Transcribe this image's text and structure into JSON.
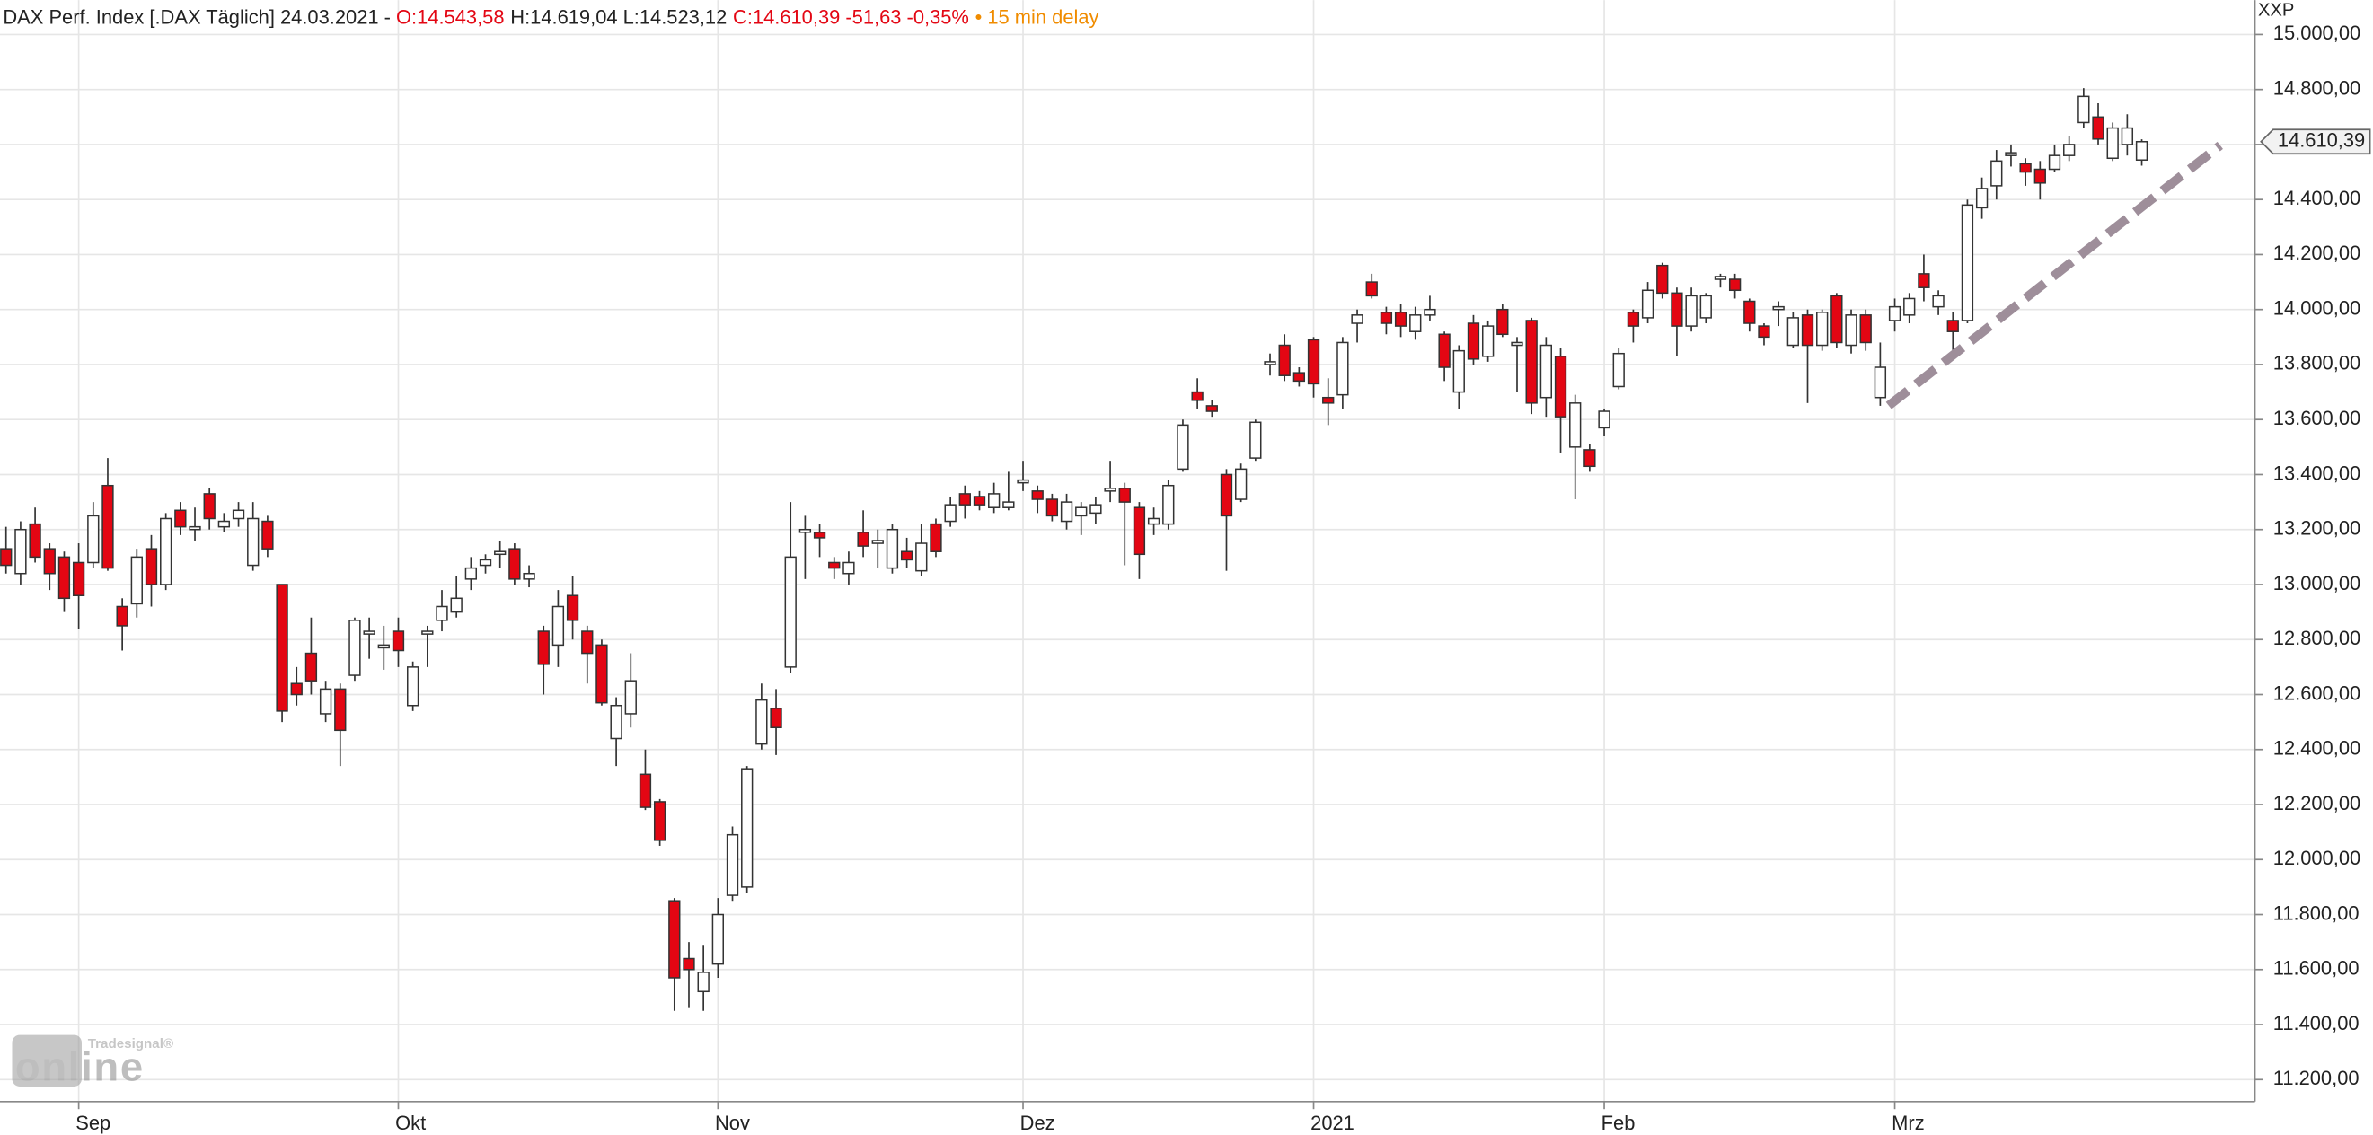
{
  "chart_data": {
    "type": "candlestick",
    "header": {
      "name": "DAX Perf. Index [.DAX Täglich] 24.03.2021 - ",
      "open": "O:14.543,58",
      "high_low": "H:14.619,04 L:14.523,12",
      "close": "C:14.610,39 -51,63 -0,35%",
      "delay": "• 15 min delay"
    },
    "axis_label": "XXP",
    "last_price_label": "14.610,39",
    "watermark": {
      "brand": "Tradesignal®",
      "product": "online"
    },
    "up_color": "#ffffff",
    "down_color": "#e30613",
    "categories": [
      null,
      null,
      null,
      null,
      null,
      "Sep",
      null,
      null,
      null,
      null,
      null,
      null,
      null,
      null,
      null,
      null,
      null,
      null,
      null,
      null,
      null,
      null,
      null,
      null,
      null,
      null,
      null,
      "Okt",
      null,
      null,
      null,
      null,
      null,
      null,
      null,
      null,
      null,
      null,
      null,
      null,
      null,
      null,
      null,
      null,
      null,
      null,
      null,
      null,
      null,
      "Nov",
      null,
      null,
      null,
      null,
      null,
      null,
      null,
      null,
      null,
      null,
      null,
      null,
      null,
      null,
      null,
      null,
      null,
      null,
      null,
      null,
      "Dez",
      null,
      null,
      null,
      null,
      null,
      null,
      null,
      null,
      null,
      null,
      null,
      null,
      null,
      null,
      null,
      null,
      null,
      null,
      null,
      "2021",
      null,
      null,
      null,
      null,
      null,
      null,
      null,
      null,
      null,
      null,
      null,
      null,
      null,
      null,
      null,
      null,
      null,
      null,
      null,
      "Feb",
      null,
      null,
      null,
      null,
      null,
      null,
      null,
      null,
      null,
      null,
      null,
      null,
      null,
      null,
      null,
      null,
      null,
      null,
      null,
      "Mrz",
      null,
      null,
      null,
      null,
      null,
      null,
      null,
      null,
      null,
      null,
      null,
      null,
      null,
      null,
      null,
      null,
      null
    ],
    "open": [
      13130,
      13040,
      13220,
      13130,
      13100,
      13080,
      13080,
      13360,
      12920,
      12930,
      13130,
      13000,
      13270,
      13200,
      13330,
      13210,
      13240,
      13070,
      13230,
      13000,
      12640,
      12750,
      12530,
      12620,
      12670,
      12820,
      12770,
      12830,
      12560,
      12820,
      12870,
      12900,
      13020,
      13070,
      13110,
      13130,
      13020,
      12830,
      12780,
      12960,
      12830,
      12780,
      12440,
      12530,
      12310,
      12210,
      11850,
      11640,
      11520,
      11620,
      11870,
      11900,
      12420,
      12550,
      12700,
      13190,
      13190,
      13080,
      13040,
      13190,
      13150,
      13060,
      13120,
      13050,
      13220,
      13230,
      13330,
      13320,
      13280,
      13280,
      13370,
      13340,
      13310,
      13230,
      13250,
      13260,
      13340,
      13350,
      13280,
      13220,
      13220,
      13420,
      13700,
      13650,
      13400,
      13310,
      13460,
      13800,
      13870,
      13770,
      13890,
      13680,
      13690,
      13950,
      14100,
      13990,
      13990,
      13920,
      13980,
      13910,
      13700,
      13950,
      13830,
      14000,
      13870,
      13960,
      13680,
      13830,
      13500,
      13490,
      13570,
      13720,
      13990,
      13970,
      14160,
      14060,
      13940,
      13970,
      14110,
      14110,
      14030,
      13940,
      14000,
      13870,
      13980,
      13870,
      14050,
      13870,
      13980,
      13680,
      13960,
      13980,
      14130,
      14010,
      13960,
      13960,
      14370,
      14450,
      14560,
      14530,
      14510,
      14510,
      14560,
      14680,
      14700,
      14550,
      14600,
      14543.58
    ],
    "high": [
      13210,
      13230,
      13280,
      13150,
      13120,
      13150,
      13300,
      13460,
      12950,
      13130,
      13180,
      13260,
      13300,
      13280,
      13350,
      13260,
      13300,
      13300,
      13250,
      13000,
      12700,
      12880,
      12650,
      12640,
      12880,
      12880,
      12850,
      12880,
      12720,
      12850,
      12980,
      13030,
      13100,
      13110,
      13160,
      13150,
      13070,
      12850,
      12980,
      13030,
      12850,
      12800,
      12590,
      12750,
      12400,
      12220,
      11860,
      11700,
      11690,
      11860,
      12120,
      12340,
      12640,
      12620,
      13300,
      13250,
      13220,
      13100,
      13120,
      13270,
      13200,
      13220,
      13170,
      13220,
      13240,
      13320,
      13360,
      13340,
      13370,
      13410,
      13450,
      13360,
      13330,
      13330,
      13300,
      13320,
      13450,
      13370,
      13300,
      13280,
      13380,
      13600,
      13750,
      13670,
      13420,
      13440,
      13600,
      13840,
      13910,
      13790,
      13900,
      13750,
      13900,
      14000,
      14130,
      14010,
      14020,
      14010,
      14050,
      13920,
      13870,
      13980,
      13960,
      14020,
      13900,
      13970,
      13900,
      13860,
      13690,
      13510,
      13640,
      13860,
      14000,
      14100,
      14170,
      14080,
      14080,
      14060,
      14130,
      14130,
      14040,
      13950,
      14030,
      13990,
      14000,
      14000,
      14060,
      14000,
      14000,
      13880,
      14040,
      14060,
      14200,
      14070,
      13990,
      14400,
      14480,
      14580,
      14600,
      14550,
      14540,
      14600,
      14630,
      14805,
      14750,
      14680,
      14710,
      14619.04
    ],
    "low": [
      13040,
      13000,
      13080,
      12980,
      12900,
      12840,
      13060,
      13050,
      12760,
      12880,
      12920,
      12980,
      13180,
      13160,
      13200,
      13190,
      13210,
      13050,
      13100,
      12500,
      12560,
      12600,
      12500,
      12340,
      12650,
      12730,
      12690,
      12700,
      12540,
      12700,
      12830,
      12880,
      12980,
      13040,
      13060,
      13000,
      12990,
      12600,
      12700,
      12800,
      12640,
      12560,
      12340,
      12480,
      12180,
      12050,
      11450,
      11460,
      11450,
      11570,
      11850,
      11880,
      12400,
      12380,
      12680,
      13020,
      13100,
      13020,
      13000,
      13100,
      13060,
      13040,
      13060,
      13030,
      13100,
      13210,
      13240,
      13270,
      13260,
      13270,
      13340,
      13260,
      13230,
      13200,
      13180,
      13220,
      13300,
      13070,
      13020,
      13180,
      13200,
      13410,
      13640,
      13610,
      13050,
      13300,
      13450,
      13760,
      13740,
      13720,
      13680,
      13580,
      13640,
      13880,
      14040,
      13910,
      13900,
      13890,
      13960,
      13740,
      13640,
      13800,
      13810,
      13900,
      13700,
      13620,
      13610,
      13480,
      13310,
      13410,
      13540,
      13710,
      13880,
      13950,
      14040,
      13830,
      13920,
      13950,
      14080,
      14040,
      13920,
      13870,
      13940,
      13860,
      13660,
      13850,
      13860,
      13840,
      13850,
      13650,
      13920,
      13950,
      14030,
      13980,
      13830,
      13950,
      14330,
      14400,
      14520,
      14450,
      14400,
      14500,
      14540,
      14660,
      14600,
      14540,
      14560,
      14523.12
    ],
    "close": [
      13070,
      13200,
      13100,
      13040,
      12950,
      12960,
      13250,
      13060,
      12850,
      13100,
      13000,
      13240,
      13210,
      13210,
      13240,
      13230,
      13270,
      13240,
      13130,
      12540,
      12600,
      12650,
      12620,
      12470,
      12870,
      12830,
      12780,
      12760,
      12700,
      12830,
      12920,
      12950,
      13060,
      13090,
      13120,
      13020,
      13040,
      12710,
      12920,
      12870,
      12750,
      12570,
      12560,
      12650,
      12190,
      12070,
      11570,
      11600,
      11590,
      11800,
      12090,
      12330,
      12580,
      12480,
      13100,
      13200,
      13170,
      13060,
      13080,
      13140,
      13160,
      13200,
      13090,
      13150,
      13120,
      13290,
      13290,
      13290,
      13330,
      13300,
      13380,
      13310,
      13250,
      13300,
      13280,
      13290,
      13350,
      13300,
      13110,
      13240,
      13360,
      13580,
      13670,
      13630,
      13250,
      13420,
      13590,
      13810,
      13760,
      13740,
      13730,
      13660,
      13880,
      13980,
      14050,
      13950,
      13940,
      13980,
      14000,
      13790,
      13850,
      13820,
      13940,
      13910,
      13880,
      13660,
      13870,
      13610,
      13660,
      13430,
      13630,
      13840,
      13940,
      14070,
      14060,
      13940,
      14050,
      14050,
      14120,
      14070,
      13950,
      13900,
      14010,
      13970,
      13870,
      13990,
      13880,
      13980,
      13880,
      13790,
      14010,
      14040,
      14080,
      14050,
      13920,
      14380,
      14440,
      14540,
      14570,
      14500,
      14460,
      14560,
      14600,
      14775,
      14620,
      14660,
      14660,
      14610.39
    ],
    "ylim": [
      11120,
      15125
    ],
    "yticks": [
      {
        "value": 11200,
        "label": "11.200,00"
      },
      {
        "value": 11400,
        "label": "11.400,00"
      },
      {
        "value": 11600,
        "label": "11.600,00"
      },
      {
        "value": 11800,
        "label": "11.800,00"
      },
      {
        "value": 12000,
        "label": "12.000,00"
      },
      {
        "value": 12200,
        "label": "12.200,00"
      },
      {
        "value": 12400,
        "label": "12.400,00"
      },
      {
        "value": 12600,
        "label": "12.600,00"
      },
      {
        "value": 12800,
        "label": "12.800,00"
      },
      {
        "value": 13000,
        "label": "13.000,00"
      },
      {
        "value": 13200,
        "label": "13.200,00"
      },
      {
        "value": 13400,
        "label": "13.400,00"
      },
      {
        "value": 13600,
        "label": "13.600,00"
      },
      {
        "value": 13800,
        "label": "13.800,00"
      },
      {
        "value": 14000,
        "label": "14.000,00"
      },
      {
        "value": 14200,
        "label": "14.200,00"
      },
      {
        "value": 14400,
        "label": "14.400,00"
      },
      {
        "value": 14600,
        "label": "14.600,00"
      },
      {
        "value": 14800,
        "label": "14.800,00"
      },
      {
        "value": 15000,
        "label": "15.000,00"
      }
    ],
    "grid": true
  }
}
